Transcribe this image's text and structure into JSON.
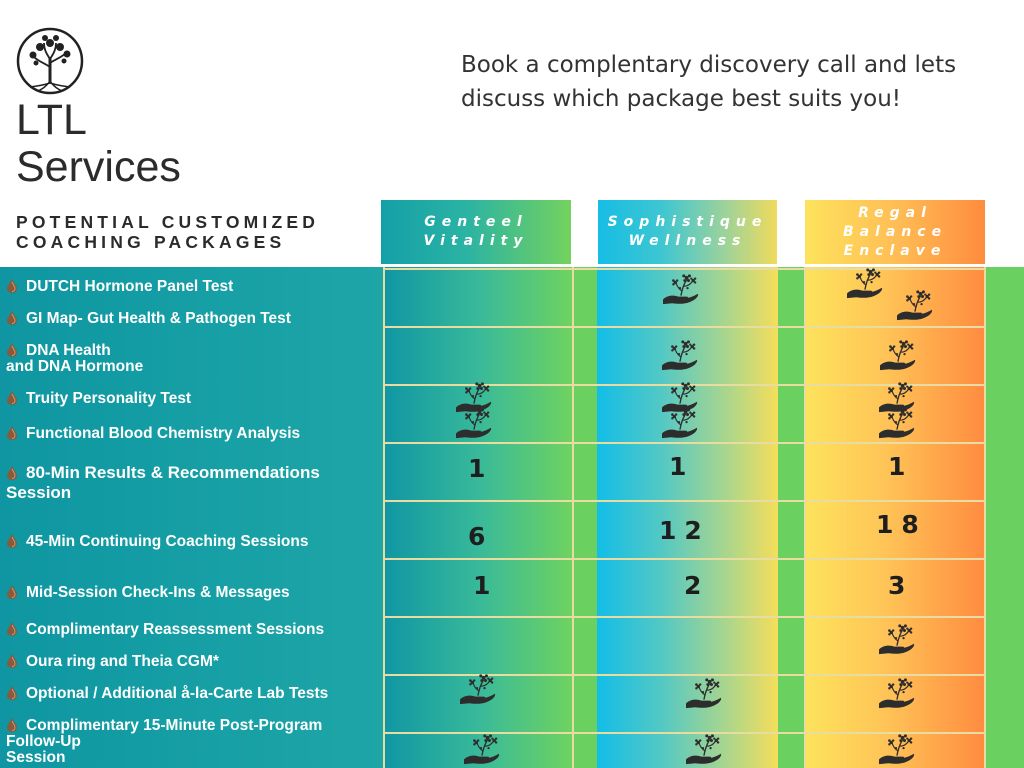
{
  "header": {
    "brand_line1": "LTL",
    "brand_line2": "Services",
    "subtitle_line1": "POTENTIAL CUSTOMIZED",
    "subtitle_line2": "COACHING PACKAGES",
    "tagline": "Book a complentary discovery call and lets discuss which package best suits you!"
  },
  "packages": [
    {
      "name_line1": "Genteel",
      "name_line2": "Vitality",
      "name_line3": ""
    },
    {
      "name_line1": "Sophistique",
      "name_line2": "Wellness",
      "name_line3": ""
    },
    {
      "name_line1": "Regal",
      "name_line2": "Balance",
      "name_line3": "Enclave"
    }
  ],
  "services": [
    {
      "label": "DUTCH Hormone Panel Test"
    },
    {
      "label": "GI Map- Gut Health & Pathogen Test"
    },
    {
      "label_line1": "DNA Health",
      "label_line2": "and DNA Hormone"
    },
    {
      "label": "Truity Personality Test"
    },
    {
      "label": "Functional Blood Chemistry Analysis"
    },
    {
      "label_line1": "80-Min  Results  &  Recommendations",
      "label_line2": "Session"
    },
    {
      "label": "45-Min Continuing Coaching Sessions"
    },
    {
      "label": "Mid-Session Check-Ins & Messages"
    },
    {
      "label": "Complimentary Reassessment Sessions"
    },
    {
      "label": "Oura ring and Theia CGM*"
    },
    {
      "label": "Optional / Additional å-la-Carte Lab Tests"
    },
    {
      "label_line1": "Complimentary   15-Minute   Post-Program",
      "label_line2": "Follow-Up",
      "label_line3": "Session"
    }
  ],
  "values": {
    "results_session": [
      "1",
      "1",
      "1"
    ],
    "coaching_sessions": [
      "6",
      "12",
      "18"
    ],
    "check_ins": [
      "1",
      "2",
      "3"
    ]
  },
  "icons": {
    "included": "hand-holding-flower-icon",
    "bullet": "brown-droplet-bullet-icon",
    "logo": "tree-of-life-logo-icon"
  },
  "colors": {
    "teal": "#17a0a5",
    "green": "#6ad160",
    "cyan": "#16bde4",
    "yellow": "#fde35c",
    "orange": "#ff8c3e",
    "grid": "#e8dca0"
  }
}
